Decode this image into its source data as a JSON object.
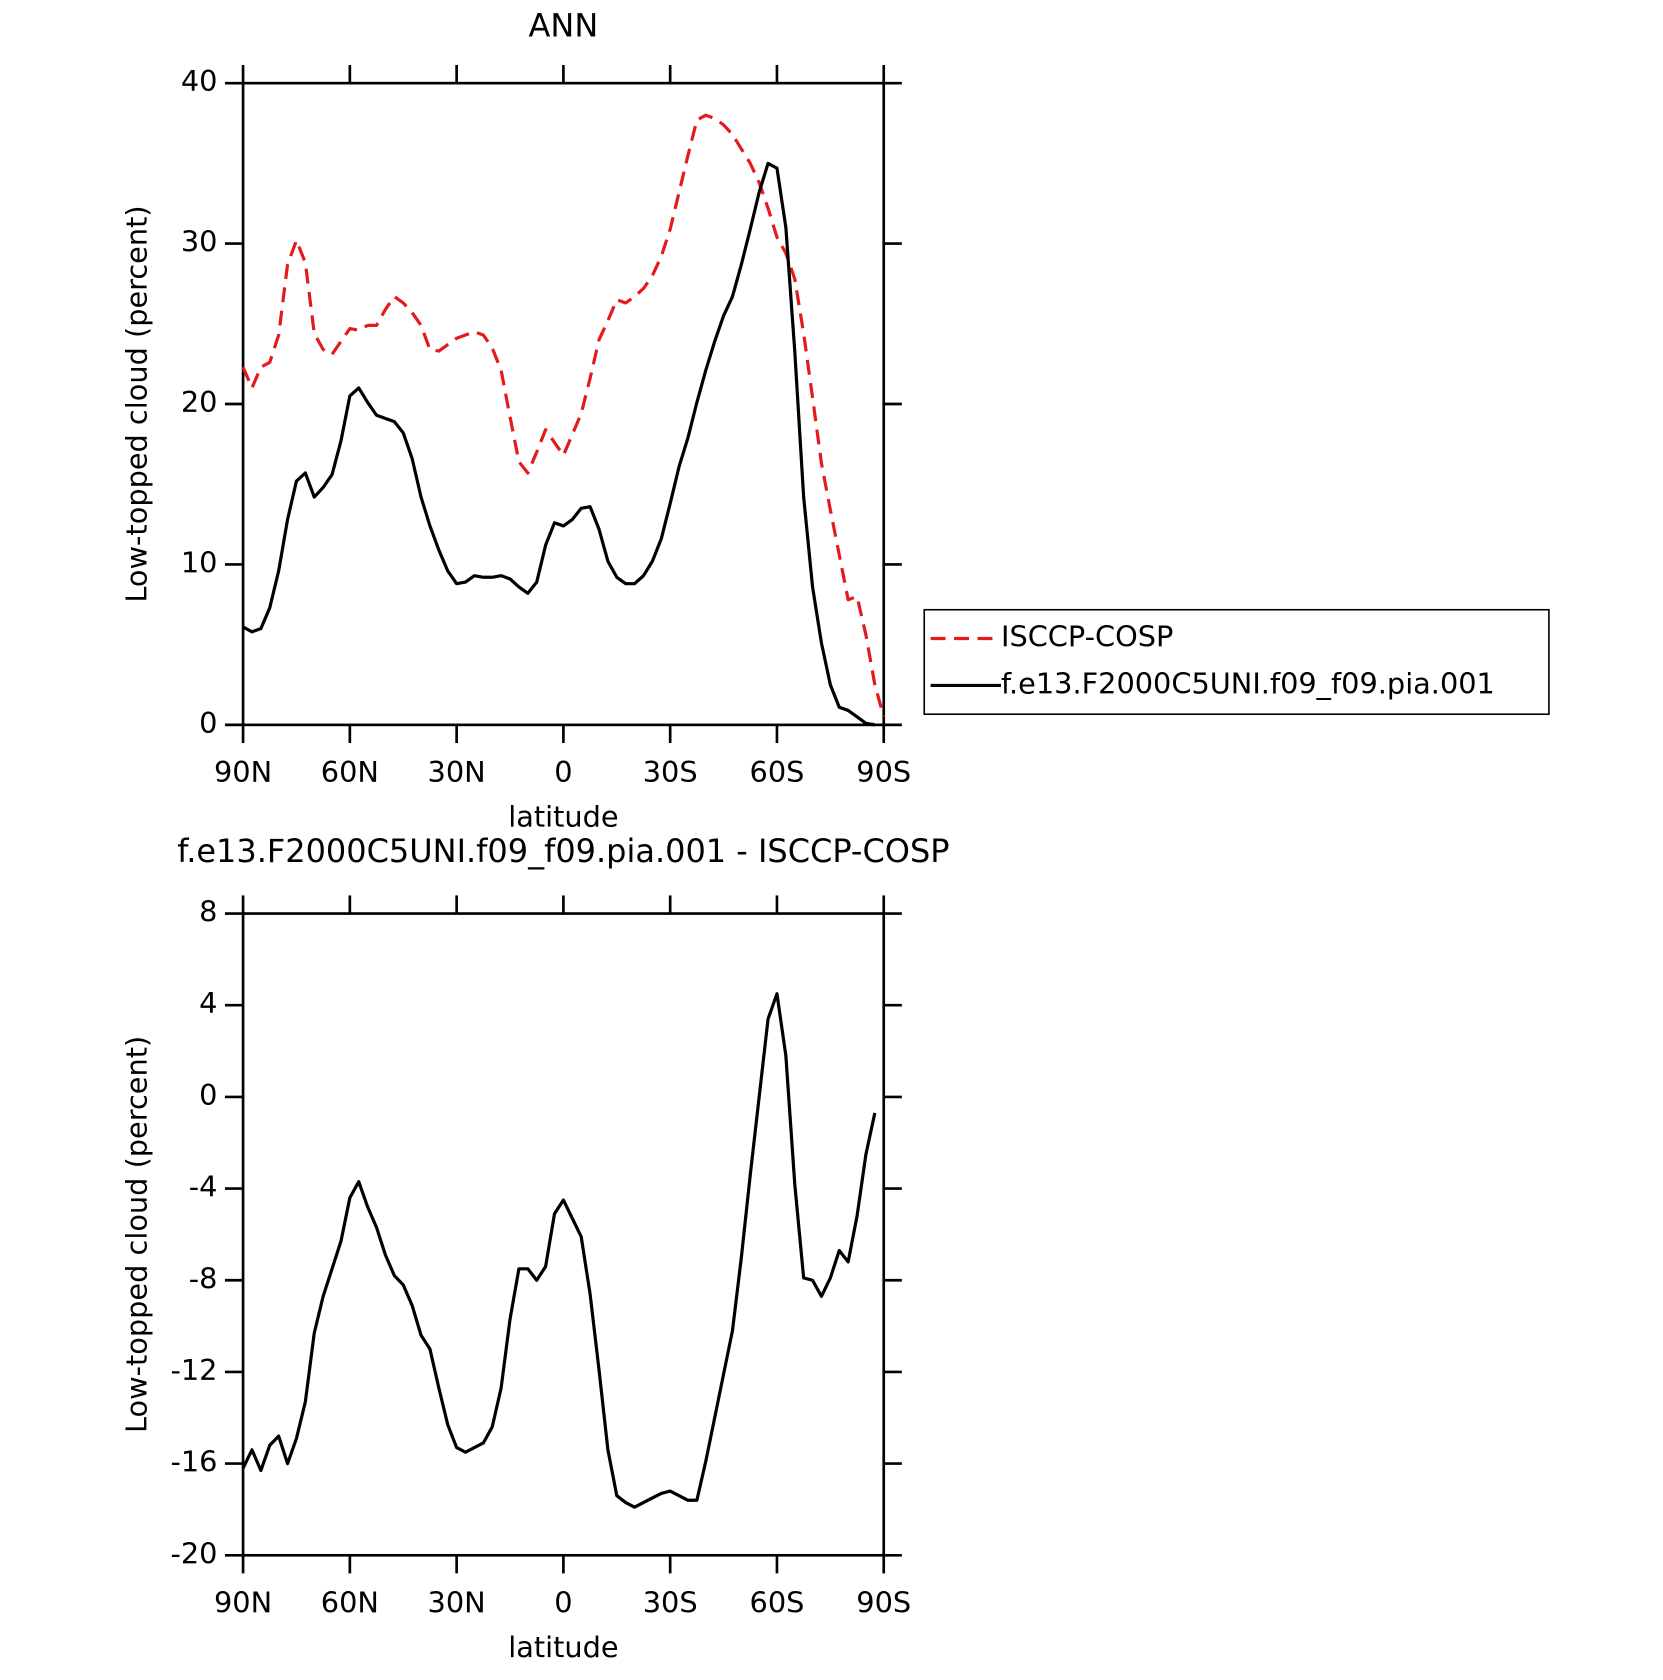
{
  "chart_data": [
    {
      "type": "line",
      "title": "ANN",
      "x": [
        90,
        87.5,
        85,
        82.5,
        80,
        77.5,
        75,
        72.5,
        70,
        67.5,
        65,
        62.5,
        60,
        57.5,
        55,
        52.5,
        50,
        47.5,
        45,
        42.5,
        40,
        37.5,
        35,
        32.5,
        30,
        27.5,
        25,
        22.5,
        20,
        17.5,
        15,
        12.5,
        10,
        7.5,
        5,
        2.5,
        0,
        -2.5,
        -5,
        -7.5,
        -10,
        -12.5,
        -15,
        -17.5,
        -20,
        -22.5,
        -25,
        -27.5,
        -30,
        -32.5,
        -35,
        -37.5,
        -40,
        -42.5,
        -45,
        -47.5,
        -50,
        -52.5,
        -55,
        -57.5,
        -60,
        -62.5,
        -65,
        -67.5,
        -70,
        -72.5,
        -75,
        -77.5,
        -80,
        -82.5,
        -85,
        -87.5,
        -90
      ],
      "series": [
        {
          "name": "ISCCP-COSP",
          "color": "#e41a1c",
          "line_style": "dashed",
          "values": [
            22.3,
            21.0,
            22.3,
            22.6,
            24.3,
            28.7,
            30.2,
            28.8,
            24.4,
            23.4,
            23.1,
            23.9,
            24.7,
            24.6,
            24.9,
            24.9,
            25.9,
            26.7,
            26.3,
            25.7,
            24.9,
            23.4,
            23.3,
            23.7,
            24.1,
            24.3,
            24.5,
            24.3,
            23.5,
            22.1,
            19.2,
            16.4,
            15.7,
            17.0,
            18.4,
            17.6,
            16.8,
            18.1,
            19.4,
            21.6,
            24.0,
            25.2,
            26.5,
            26.3,
            26.7,
            27.2,
            28.0,
            29.2,
            30.9,
            33.2,
            35.5,
            37.7,
            38.0,
            37.8,
            37.4,
            36.8,
            35.9,
            35.0,
            33.8,
            32.2,
            30.4,
            29.4,
            27.8,
            24.4,
            20.4,
            16.3,
            13.4,
            10.6,
            7.8,
            8.0,
            5.6,
            2.5,
            0.5
          ]
        },
        {
          "name": "f.e13.F2000C5UNI.f09_f09.pia.001",
          "color": "#000000",
          "line_style": "solid",
          "values": [
            6.1,
            5.8,
            6.0,
            7.3,
            9.6,
            12.8,
            15.2,
            15.7,
            14.2,
            14.8,
            15.6,
            17.7,
            20.5,
            21.0,
            20.1,
            19.3,
            19.1,
            18.9,
            18.2,
            16.6,
            14.2,
            12.4,
            10.9,
            9.6,
            8.8,
            8.9,
            9.3,
            9.2,
            9.2,
            9.3,
            9.1,
            8.6,
            8.2,
            8.9,
            11.2,
            12.6,
            12.4,
            12.8,
            13.5,
            13.6,
            12.2,
            10.2,
            9.2,
            8.8,
            8.8,
            9.3,
            10.2,
            11.6,
            13.8,
            16.1,
            17.9,
            20.1,
            22.1,
            23.9,
            25.5,
            26.7,
            28.7,
            30.9,
            33.2,
            35.0,
            34.7,
            31.0,
            23.3,
            14.2,
            8.6,
            5.1,
            2.5,
            1.1,
            0.9,
            0.5,
            0.1,
            0.0,
            null
          ]
        }
      ],
      "xlabel": "latitude",
      "ylabel": "Low-topped cloud (percent)",
      "xlim": [
        90,
        -90
      ],
      "xticks": [
        {
          "value": 90,
          "label": "90N"
        },
        {
          "value": 60,
          "label": "60N"
        },
        {
          "value": 30,
          "label": "30N"
        },
        0,
        {
          "value": -30,
          "label": "30S"
        },
        {
          "value": -60,
          "label": "60S"
        },
        {
          "value": -90,
          "label": "90S"
        }
      ],
      "ylim": [
        0,
        40
      ],
      "yticks": [
        0,
        10,
        20,
        30,
        40
      ],
      "grid": false,
      "legend": "outside right"
    },
    {
      "type": "line",
      "title": "f.e13.F2000C5UNI.f09_f09.pia.001 - ISCCP-COSP",
      "x": [
        90,
        87.5,
        85,
        82.5,
        80,
        77.5,
        75,
        72.5,
        70,
        67.5,
        65,
        62.5,
        60,
        57.5,
        55,
        52.5,
        50,
        47.5,
        45,
        42.5,
        40,
        37.5,
        35,
        32.5,
        30,
        27.5,
        25,
        22.5,
        20,
        17.5,
        15,
        12.5,
        10,
        7.5,
        5,
        2.5,
        0,
        -2.5,
        -5,
        -7.5,
        -10,
        -12.5,
        -15,
        -17.5,
        -20,
        -22.5,
        -25,
        -27.5,
        -30,
        -32.5,
        -35,
        -37.5,
        -40,
        -42.5,
        -45,
        -47.5,
        -50,
        -52.5,
        -55,
        -57.5,
        -60,
        -62.5,
        -65,
        -67.5,
        -70,
        -72.5,
        -75,
        -77.5,
        -80,
        -82.5,
        -85,
        -87.5,
        -90
      ],
      "series": [
        {
          "color": "#000000",
          "line_style": "solid",
          "values": [
            -16.2,
            -15.4,
            -16.3,
            -15.2,
            -14.8,
            -16.0,
            -14.9,
            -13.3,
            -10.3,
            -8.7,
            -7.5,
            -6.3,
            -4.4,
            -3.7,
            -4.8,
            -5.7,
            -6.9,
            -7.8,
            -8.2,
            -9.1,
            -10.4,
            -11.0,
            -12.7,
            -14.3,
            -15.3,
            -15.5,
            -15.3,
            -15.1,
            -14.4,
            -12.7,
            -9.7,
            -7.5,
            -7.5,
            -8.0,
            -7.4,
            -5.1,
            -4.5,
            -5.3,
            -6.1,
            -8.6,
            -11.9,
            -15.4,
            -17.4,
            -17.7,
            -17.9,
            -17.7,
            -17.5,
            -17.3,
            -17.2,
            -17.4,
            -17.6,
            -17.6,
            -15.9,
            -14.0,
            -12.1,
            -10.2,
            -7.0,
            -3.4,
            0.0,
            3.4,
            4.5,
            1.8,
            -3.8,
            -7.9,
            -8.0,
            -8.7,
            -7.9,
            -6.7,
            -7.2,
            -5.2,
            -2.5,
            -0.7,
            null
          ]
        }
      ],
      "xlabel": "latitude",
      "ylabel": "Low-topped cloud (percent)",
      "xlim": [
        90,
        -90
      ],
      "xticks": [
        {
          "value": 90,
          "label": "90N"
        },
        {
          "value": 60,
          "label": "60N"
        },
        {
          "value": 30,
          "label": "30N"
        },
        0,
        {
          "value": -30,
          "label": "30S"
        },
        {
          "value": -60,
          "label": "60S"
        },
        {
          "value": -90,
          "label": "90S"
        }
      ],
      "ylim": [
        -20,
        8
      ],
      "yticks": [
        -20,
        -16,
        -12,
        -8,
        -4,
        0,
        4,
        8
      ],
      "grid": false
    }
  ]
}
